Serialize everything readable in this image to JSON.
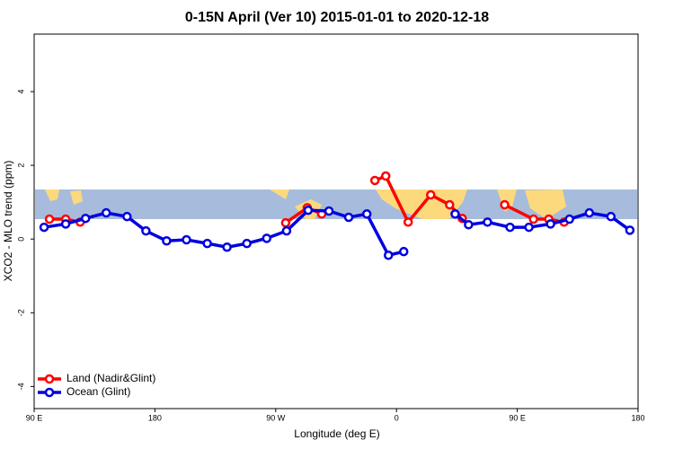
{
  "chart_data": {
    "type": "line",
    "title": "0-15N April (Ver 10)   2015-01-01 to 2020-12-18",
    "x_label": "Longitude (deg E)",
    "y_label": "XCO2 - MLO trend (ppm)",
    "xlim": [
      90,
      540
    ],
    "xticks": [
      {
        "value": 90,
        "label": "90 E"
      },
      {
        "value": 180,
        "label": "180"
      },
      {
        "value": 270,
        "label": "90 W"
      },
      {
        "value": 360,
        "label": "0"
      },
      {
        "value": 450,
        "label": "90 E"
      },
      {
        "value": 540,
        "label": "180"
      }
    ],
    "ylim": [
      -4.6,
      5.56
    ],
    "yticks": [
      -4,
      -2,
      0,
      2,
      4
    ],
    "legend": "bottom-left",
    "series": [
      {
        "name": "Land (Nadir&Glint)",
        "color": "#ff0000",
        "x": [
          101.4,
          113.5,
          124.3,
          null,
          277.4,
          293.5,
          304.3,
          null,
          343.9,
          352,
          368.7,
          385.5,
          399.6,
          409,
          null,
          440.6,
          462.1,
          473.5,
          484.9
        ],
        "values": [
          0.54,
          0.54,
          0.46,
          null,
          0.44,
          0.85,
          0.68,
          null,
          1.59,
          1.71,
          0.46,
          1.2,
          0.93,
          0.56,
          null,
          0.93,
          0.54,
          0.54,
          0.46
        ]
      },
      {
        "name": "Ocean (Glint)",
        "color": "#0000e0",
        "x": [
          97.4,
          113.5,
          128.3,
          143.7,
          159.2,
          173.3,
          188.7,
          203.5,
          219,
          233.7,
          248.5,
          263.3,
          278.1,
          294.2,
          309.7,
          324.4,
          337.9,
          354,
          365.4,
          null,
          403.7,
          413.7,
          427.8,
          444.6,
          458.7,
          474.8,
          488.9,
          503.7,
          519.8,
          533.9
        ],
        "values": [
          0.32,
          0.41,
          0.56,
          0.71,
          0.61,
          0.22,
          -0.05,
          -0.02,
          -0.12,
          -0.22,
          -0.12,
          0.02,
          0.22,
          0.78,
          0.76,
          0.59,
          0.68,
          -0.44,
          -0.34,
          null,
          0.68,
          0.39,
          0.46,
          0.32,
          0.32,
          0.41,
          0.54,
          0.71,
          0.61,
          0.24
        ]
      }
    ]
  }
}
